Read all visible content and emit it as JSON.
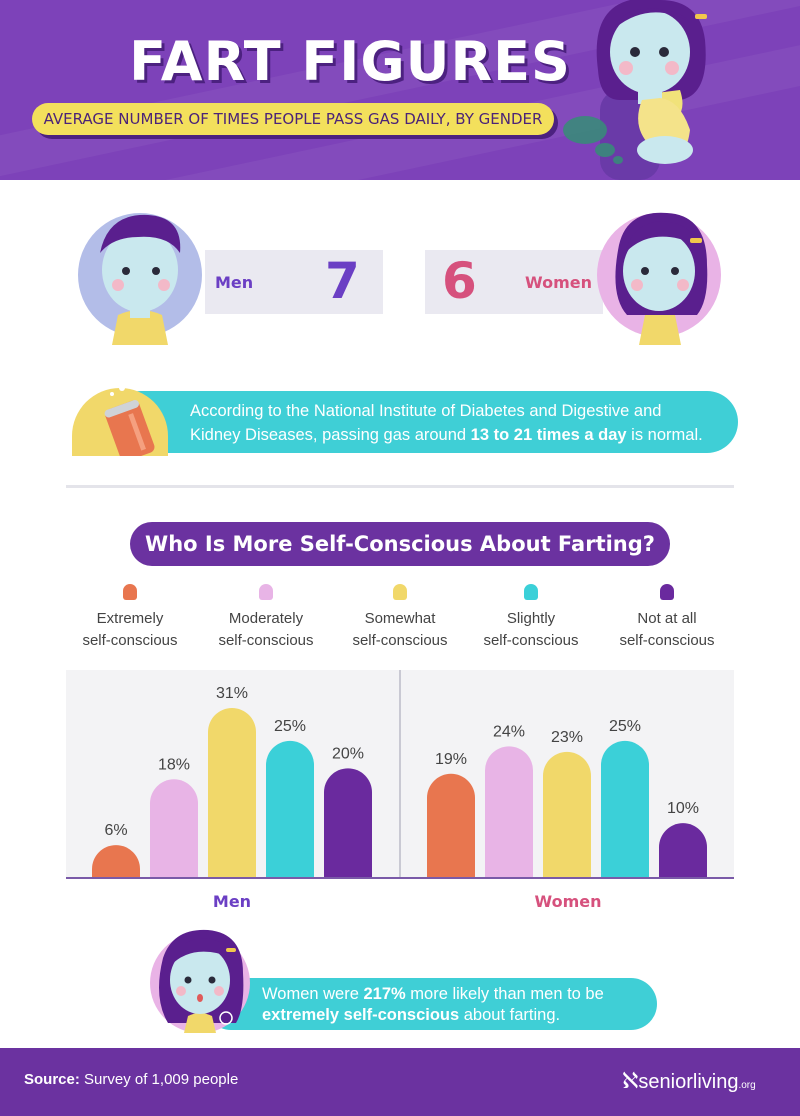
{
  "header": {
    "title": "FART FIGURES",
    "subtitle": "AVERAGE NUMBER OF TIMES PEOPLE PASS GAS DAILY, BY GENDER"
  },
  "daily": {
    "men_label": "Men",
    "men_value": "7",
    "women_label": "Women",
    "women_value": "6"
  },
  "fact1": {
    "text_a": "According to the National Institute of Diabetes and Digestive and",
    "text_b": "Kidney Diseases, passing gas around ",
    "text_bold": "13 to 21 times a day",
    "text_c": " is normal."
  },
  "chart_title": "Who Is More Self-Conscious About Farting?",
  "legend": [
    {
      "line1": "Extremely",
      "line2": "self-conscious",
      "color": "#e8764f"
    },
    {
      "line1": "Moderately",
      "line2": "self-conscious",
      "color": "#e8b4e6"
    },
    {
      "line1": "Somewhat",
      "line2": "self-conscious",
      "color": "#f1d86a"
    },
    {
      "line1": "Slightly",
      "line2": "self-conscious",
      "color": "#3bd0d8"
    },
    {
      "line1": "Not at all",
      "line2": "self-conscious",
      "color": "#6a2a9e"
    }
  ],
  "chart_data": {
    "type": "bar",
    "categories": [
      "Extremely self-conscious",
      "Moderately self-conscious",
      "Somewhat self-conscious",
      "Slightly self-conscious",
      "Not at all self-conscious"
    ],
    "groups": [
      "Men",
      "Women"
    ],
    "series": [
      {
        "name": "Men",
        "values": [
          6,
          18,
          31,
          25,
          20
        ],
        "labels": [
          "6%",
          "18%",
          "31%",
          "25%",
          "20%"
        ]
      },
      {
        "name": "Women",
        "values": [
          19,
          24,
          23,
          25,
          10
        ],
        "labels": [
          "19%",
          "24%",
          "23%",
          "25%",
          "10%"
        ]
      }
    ],
    "ylim": [
      0,
      35
    ],
    "colors": [
      "#e8764f",
      "#e8b4e6",
      "#f1d86a",
      "#3bd0d8",
      "#6a2a9e"
    ],
    "group_label_colors": [
      "#6b3fc4",
      "#d6517d"
    ]
  },
  "fact2": {
    "text_a": "Women were ",
    "text_bold1": "217%",
    "text_b": " more likely than men to be",
    "text_bold2": "extremely self-conscious",
    "text_c": " about farting."
  },
  "footer": {
    "source_label": "Source:",
    "source_text": " Survey of 1,009 people",
    "brand": "seniorliving",
    "brand_suffix": ".org"
  },
  "colors": {
    "purple_dark": "#6b32a0",
    "purple_header": "#7d42b9",
    "yellow": "#f3e05c",
    "teal": "#3fcfd6",
    "men_accent": "#6b3fc4",
    "women_accent": "#d6517d"
  }
}
